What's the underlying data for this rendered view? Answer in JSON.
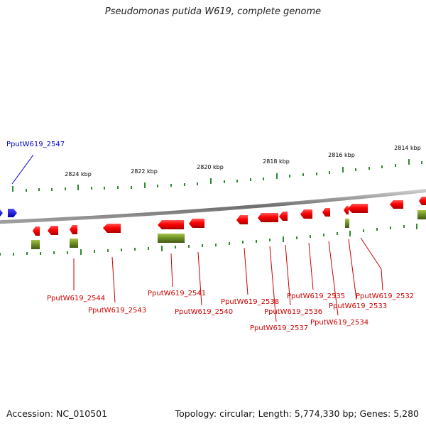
{
  "title": "Pseudomonas putida W619, complete genome",
  "footer": {
    "accession": "Accession: NC_010501",
    "topology": "Topology: circular; Length: 5,774,330 bp; Genes: 5,280"
  },
  "colors": {
    "forward_gene": "#ff0000",
    "cds": "#6b8e23",
    "label_forward": "#cc0000",
    "label_other": "#0000cc",
    "backbone": "#888888",
    "tick": "#2e8b2e"
  },
  "scale_labels": [
    "2824 kbp",
    "2822 kbp",
    "2820 kbp",
    "2818 kbp",
    "2816 kbp",
    "2814 kbp"
  ],
  "gene_labels": [
    {
      "name": "PputW619_2547",
      "color": "blue"
    },
    {
      "name": "PputW619_2544",
      "color": "red"
    },
    {
      "name": "PputW619_2543",
      "color": "red"
    },
    {
      "name": "PputW619_2541",
      "color": "red"
    },
    {
      "name": "PputW619_2540",
      "color": "red"
    },
    {
      "name": "PputW619_2538",
      "color": "red"
    },
    {
      "name": "PputW619_2537",
      "color": "red"
    },
    {
      "name": "PputW619_2536",
      "color": "red"
    },
    {
      "name": "PputW619_2535",
      "color": "red"
    },
    {
      "name": "PputW619_2534",
      "color": "red"
    },
    {
      "name": "PputW619_2533",
      "color": "red"
    },
    {
      "name": "PputW619_2532",
      "color": "red"
    }
  ]
}
